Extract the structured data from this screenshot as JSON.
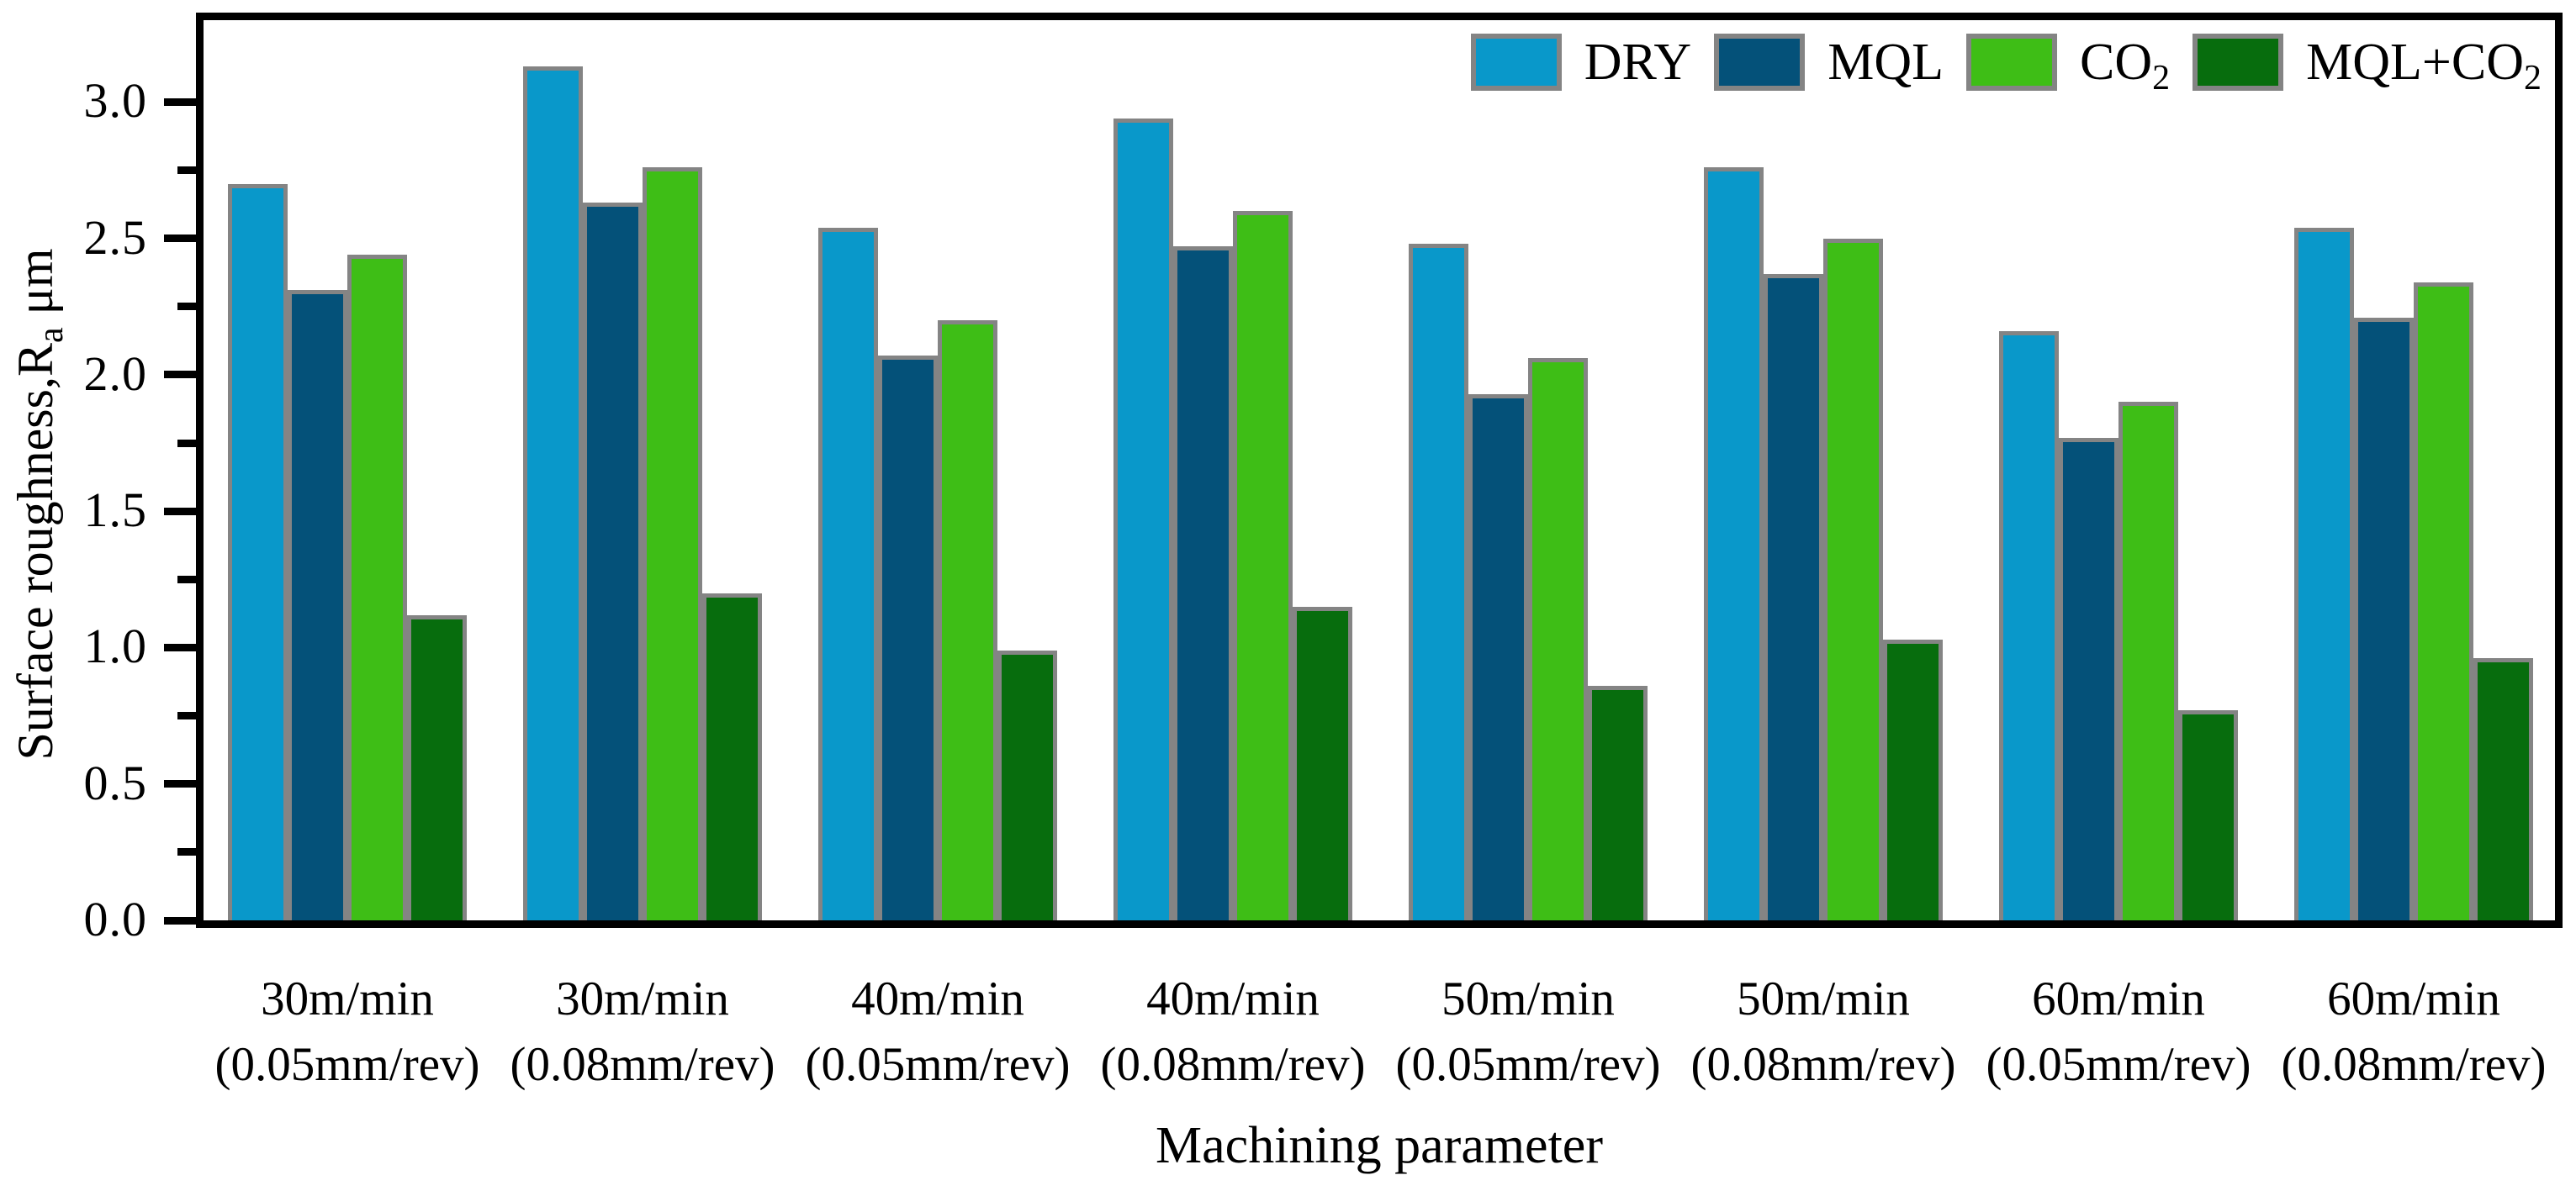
{
  "figure": {
    "background": "#ffffff",
    "axis_color": "#000000",
    "bar_border_color": "#848484"
  },
  "y_axis": {
    "label_main": "Surface roughness,R",
    "label_sub": "a",
    "label_suffix": " μm",
    "tick_labels": [
      "0.0",
      "0.5",
      "1.0",
      "1.5",
      "2.0",
      "2.5",
      "3.0"
    ],
    "min": 0,
    "max": 3.3,
    "major_step": 0.5,
    "minor_step": 0.25
  },
  "x_axis": {
    "title": "Machining parameter",
    "categories": [
      {
        "speed": "30m/min",
        "feed": "(0.05mm/rev)"
      },
      {
        "speed": "30m/min",
        "feed": "(0.08mm/rev)"
      },
      {
        "speed": "40m/min",
        "feed": "(0.05mm/rev)"
      },
      {
        "speed": "40m/min",
        "feed": "(0.08mm/rev)"
      },
      {
        "speed": "50m/min",
        "feed": "(0.05mm/rev)"
      },
      {
        "speed": "50m/min",
        "feed": "(0.08mm/rev)"
      },
      {
        "speed": "60m/min",
        "feed": "(0.05mm/rev)"
      },
      {
        "speed": "60m/min",
        "feed": "(0.08mm/rev)"
      }
    ]
  },
  "legend": [
    {
      "label_main": "DRY",
      "label_sub": "",
      "color": "#0998ca"
    },
    {
      "label_main": "MQL",
      "label_sub": "",
      "color": "#045179"
    },
    {
      "label_main": "CO",
      "label_sub": "2",
      "color": "#3ebe16"
    },
    {
      "label_main": "MQL+CO",
      "label_sub": "2",
      "color": "#076d0d"
    }
  ],
  "chart_data": {
    "type": "bar",
    "title": "",
    "xlabel": "Machining parameter",
    "ylabel": "Surface roughness, Ra (μm)",
    "ylim": [
      0,
      3.3
    ],
    "grid": false,
    "legend_position": "top-right-inside",
    "categories": [
      "30m/min (0.05mm/rev)",
      "30m/min (0.08mm/rev)",
      "40m/min (0.05mm/rev)",
      "40m/min (0.08mm/rev)",
      "50m/min (0.05mm/rev)",
      "50m/min (0.08mm/rev)",
      "60m/min (0.05mm/rev)",
      "60m/min (0.08mm/rev)"
    ],
    "series": [
      {
        "name": "DRY",
        "color": "#0998ca",
        "values": [
          2.7,
          3.13,
          2.54,
          2.94,
          2.48,
          2.76,
          2.16,
          2.54
        ]
      },
      {
        "name": "MQL",
        "color": "#045179",
        "values": [
          2.31,
          2.63,
          2.07,
          2.47,
          1.93,
          2.37,
          1.77,
          2.21
        ]
      },
      {
        "name": "CO2",
        "color": "#3ebe16",
        "values": [
          2.44,
          2.76,
          2.2,
          2.6,
          2.06,
          2.5,
          1.9,
          2.34
        ]
      },
      {
        "name": "MQL+CO2",
        "color": "#076d0d",
        "values": [
          1.12,
          1.2,
          0.99,
          1.15,
          0.86,
          1.03,
          0.77,
          0.96
        ]
      }
    ]
  }
}
